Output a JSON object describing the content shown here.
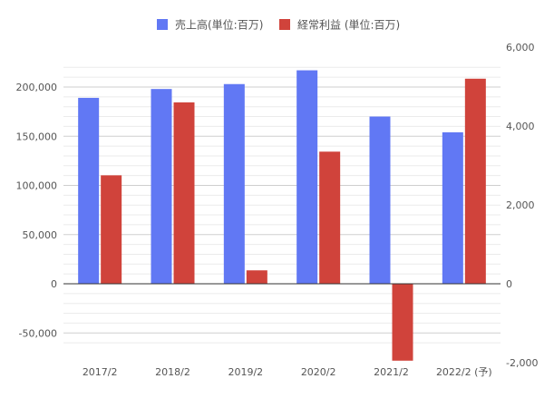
{
  "chart_data": {
    "type": "bar",
    "categories": [
      "2017/2",
      "2018/2",
      "2019/2",
      "2020/2",
      "2021/2",
      "2022/2 (予)"
    ],
    "series": [
      {
        "name": "売上高(単位:百万)",
        "axis": "left",
        "color": "#6178f4",
        "values": [
          189000,
          198000,
          203000,
          217000,
          170000,
          154000
        ]
      },
      {
        "name": "経常利益 (単位:百万)",
        "axis": "right",
        "color": "#d0433b",
        "values": [
          2750,
          4600,
          340,
          3350,
          -1950,
          5200
        ]
      }
    ],
    "y_left": {
      "min": -65000,
      "max": 220000,
      "ticks": [
        -50000,
        0,
        50000,
        100000,
        150000,
        200000
      ],
      "tick_labels": [
        "-50,000",
        "0",
        "50,000",
        "100,000",
        "150,000",
        "200,000"
      ]
    },
    "y_right": {
      "min": -2000,
      "max": 6000,
      "ticks": [
        -2000,
        0,
        2000,
        4000,
        6000
      ],
      "tick_labels": [
        "-2,000",
        "0",
        "2,000",
        "4,000",
        "6,000"
      ]
    },
    "grid": true,
    "legend_position": "top-center"
  }
}
